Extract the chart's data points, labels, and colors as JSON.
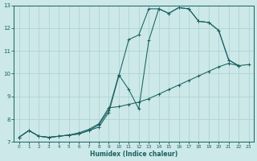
{
  "xlabel": "Humidex (Indice chaleur)",
  "xlim": [
    -0.5,
    23.5
  ],
  "ylim": [
    7,
    13
  ],
  "xticks": [
    0,
    1,
    2,
    3,
    4,
    5,
    6,
    7,
    8,
    9,
    10,
    11,
    12,
    13,
    14,
    15,
    16,
    17,
    18,
    19,
    20,
    21,
    22,
    23
  ],
  "yticks": [
    7,
    8,
    9,
    10,
    11,
    12,
    13
  ],
  "bg_color": "#cce8e8",
  "grid_color": "#aacfcf",
  "line_color": "#1a6060",
  "line1_x": [
    0,
    1,
    2,
    3,
    4,
    5,
    6,
    7,
    8,
    9,
    10,
    11,
    12,
    13,
    14,
    15,
    16,
    17,
    18,
    19,
    20,
    21,
    22
  ],
  "line1_y": [
    7.2,
    7.5,
    7.25,
    7.2,
    7.25,
    7.3,
    7.35,
    7.5,
    7.65,
    8.3,
    9.9,
    11.5,
    11.7,
    12.85,
    12.85,
    12.65,
    12.9,
    12.85,
    12.3,
    12.25,
    11.9,
    10.6,
    10.35
  ],
  "line2_x": [
    0,
    1,
    2,
    3,
    4,
    5,
    6,
    7,
    8,
    9,
    10,
    11,
    12,
    13,
    14,
    15,
    16,
    17,
    18,
    19,
    20,
    21,
    22
  ],
  "line2_y": [
    7.2,
    7.5,
    7.25,
    7.2,
    7.25,
    7.3,
    7.35,
    7.5,
    7.75,
    8.4,
    9.95,
    9.3,
    8.45,
    11.45,
    12.85,
    12.65,
    12.9,
    12.85,
    12.3,
    12.25,
    11.9,
    10.6,
    10.35
  ],
  "line3_x": [
    0,
    1,
    2,
    3,
    4,
    5,
    6,
    7,
    8,
    9,
    10,
    11,
    12,
    13,
    14,
    15,
    16,
    17,
    18,
    19,
    20,
    21,
    22,
    23
  ],
  "line3_y": [
    7.2,
    7.5,
    7.25,
    7.2,
    7.25,
    7.3,
    7.4,
    7.55,
    7.8,
    8.5,
    8.55,
    8.65,
    8.75,
    8.9,
    9.1,
    9.3,
    9.5,
    9.7,
    9.9,
    10.1,
    10.3,
    10.45,
    10.35,
    10.4
  ]
}
